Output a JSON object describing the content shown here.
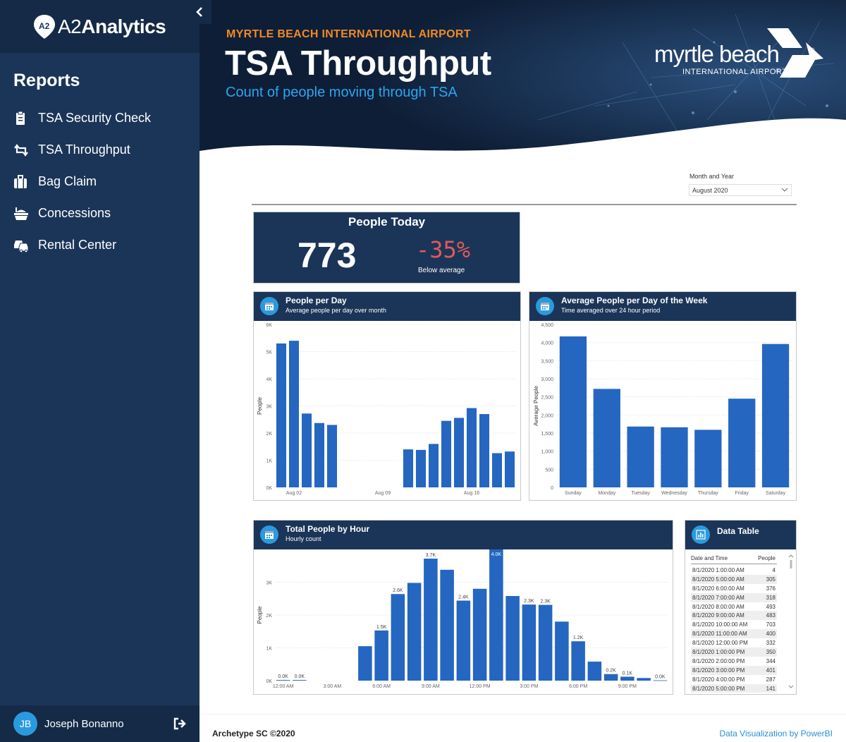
{
  "app": {
    "brand": "A2Analytics",
    "brand_prefix": "A2",
    "brand_suffix": "Analytics"
  },
  "sidebar": {
    "section_title": "Reports",
    "items": [
      {
        "label": "TSA Security Check",
        "icon": "clipboard-icon"
      },
      {
        "label": "TSA Throughput",
        "icon": "retweet-icon"
      },
      {
        "label": "Bag Claim",
        "icon": "suitcase-icon"
      },
      {
        "label": "Concessions",
        "icon": "food-icon"
      },
      {
        "label": "Rental Center",
        "icon": "cars-icon"
      }
    ],
    "user": {
      "initials": "JB",
      "name": "Joseph Bonanno"
    }
  },
  "header": {
    "subtitle": "MYRTLE BEACH INTERNATIONAL AIRPORT",
    "title": "TSA Throughput",
    "tagline": "Count of people moving through TSA",
    "logo_line1": "myrtle beach",
    "logo_line2": "INTERNATIONAL AIRPORT"
  },
  "filter": {
    "label": "Month and Year",
    "value": "August 2020"
  },
  "kpi": {
    "title": "People Today",
    "value": "773",
    "delta": "-35%",
    "note": "Below average"
  },
  "cards": {
    "per_day": {
      "title": "People per Day",
      "subtitle": "Average people per day over month"
    },
    "weekday": {
      "title": "Average People per Day of the Week",
      "subtitle": "Time averaged over 24 hour period"
    },
    "hourly": {
      "title": "Total People by Hour",
      "subtitle": "Hourly count"
    },
    "table": {
      "title": "Data Table"
    }
  },
  "chart_data": [
    {
      "type": "bar",
      "title": "People per Day",
      "ylabel": "People",
      "ylim": [
        0,
        6000
      ],
      "yticks": [
        "0K",
        "1K",
        "2K",
        "3K",
        "4K",
        "5K",
        "6K"
      ],
      "xtick_labels": [
        "Aug 02",
        "Aug 09",
        "Aug 16"
      ],
      "categories": [
        "Aug 01",
        "Aug 02",
        "Aug 03",
        "Aug 04",
        "Aug 05",
        "Aug 06",
        "Aug 07",
        "Aug 08",
        "Aug 09",
        "Aug 10",
        "Aug 11",
        "Aug 12",
        "Aug 13",
        "Aug 14",
        "Aug 15",
        "Aug 16",
        "Aug 17",
        "Aug 18",
        "Aug 19"
      ],
      "values": [
        5300,
        5400,
        2720,
        2370,
        2300,
        null,
        null,
        null,
        null,
        null,
        1400,
        1380,
        1600,
        2450,
        2560,
        2920,
        2700,
        1260,
        1320
      ]
    },
    {
      "type": "bar",
      "title": "Average People per Day of the Week",
      "ylabel": "Average People",
      "ylim": [
        0,
        4500
      ],
      "yticks": [
        "0",
        "500",
        "1,000",
        "1,500",
        "2,000",
        "2,500",
        "3,000",
        "3,500",
        "4,000",
        "4,500"
      ],
      "categories": [
        "Sunday",
        "Monday",
        "Tuesday",
        "Wednesday",
        "Thursday",
        "Friday",
        "Saturday"
      ],
      "values": [
        4170,
        2720,
        1680,
        1660,
        1590,
        2450,
        3960
      ]
    },
    {
      "type": "bar",
      "title": "Total People by Hour",
      "ylabel": "People",
      "ylim": [
        0,
        4000
      ],
      "yticks": [
        "0K",
        "1K",
        "2K",
        "3K"
      ],
      "xtick_labels": [
        "12:00 AM",
        "3:00 AM",
        "6:00 AM",
        "9:00 AM",
        "12:00 PM",
        "3:00 PM",
        "6:00 PM",
        "9:00 PM"
      ],
      "categories": [
        "12:00 AM",
        "1:00 AM",
        "2:00 AM",
        "3:00 AM",
        "4:00 AM",
        "5:00 AM",
        "6:00 AM",
        "7:00 AM",
        "8:00 AM",
        "9:00 AM",
        "10:00 AM",
        "11:00 AM",
        "12:00 PM",
        "1:00 PM",
        "2:00 PM",
        "3:00 PM",
        "4:00 PM",
        "5:00 PM",
        "6:00 PM",
        "7:00 PM",
        "8:00 PM",
        "9:00 PM",
        "10:00 PM",
        "11:00 PM"
      ],
      "values": [
        20,
        20,
        null,
        null,
        null,
        1050,
        1530,
        2640,
        2980,
        3720,
        3380,
        2440,
        2800,
        4000,
        2580,
        2320,
        2310,
        1800,
        1200,
        580,
        200,
        120,
        80,
        10
      ],
      "data_labels": {
        "0": "0.0K",
        "1": "0.0K",
        "6": "1.5K",
        "7": "2.6K",
        "9": "3.7K",
        "11": "2.4K",
        "13": "4.0K",
        "15": "2.3K",
        "16": "2.3K",
        "18": "1.2K",
        "20": "0.2K",
        "21": "0.1K",
        "23": "0.0K"
      }
    },
    {
      "type": "table",
      "title": "Data Table",
      "columns": [
        "Date and Time",
        "People"
      ],
      "rows": [
        [
          "8/1/2020 1:00:00 AM",
          "4"
        ],
        [
          "8/1/2020 5:00:00 AM",
          "305"
        ],
        [
          "8/1/2020 6:00:00 AM",
          "376"
        ],
        [
          "8/1/2020 7:00:00 AM",
          "318"
        ],
        [
          "8/1/2020 8:00:00 AM",
          "493"
        ],
        [
          "8/1/2020 9:00:00 AM",
          "483"
        ],
        [
          "8/1/2020 10:00:00 AM",
          "703"
        ],
        [
          "8/1/2020 11:00:00 AM",
          "400"
        ],
        [
          "8/1/2020 12:00:00 PM",
          "332"
        ],
        [
          "8/1/2020 1:00:00 PM",
          "350"
        ],
        [
          "8/1/2020 2:00:00 PM",
          "344"
        ],
        [
          "8/1/2020 3:00:00 PM",
          "401"
        ],
        [
          "8/1/2020 4:00:00 PM",
          "287"
        ],
        [
          "8/1/2020 5:00:00 PM",
          "141"
        ]
      ]
    }
  ],
  "footer": {
    "left": "Archetype SC ©2020",
    "right": "Data Visualization by PowerBI"
  },
  "colors": {
    "navy": "#1b3558",
    "bar": "#2566c0",
    "accent_orange": "#f08a24",
    "accent_blue": "#2aa6f0",
    "negative": "#e05a58"
  }
}
